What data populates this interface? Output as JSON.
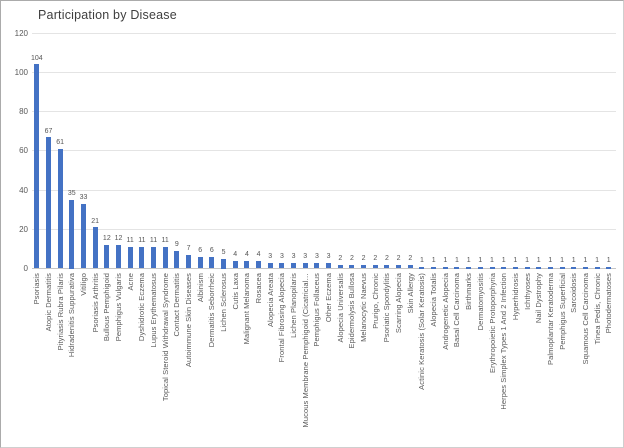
{
  "chart_data": {
    "type": "bar",
    "title": "Participation by Disease",
    "categories": [
      "Psoriasis",
      "Atopic Dermatitis",
      "Pityriasis Rubra Pilaris",
      "Hidradenitis Suppurativa",
      "Vitiligo",
      "Psoriasis Arthritis",
      "Bullous Pemphigoid",
      "Pemphigus Vulgaris",
      "Acne",
      "Dyshidrotic Eczema",
      "Lupus Erythematosus",
      "Topical Steroid Withdrawal Syndrome",
      "Contact Dermatitis",
      "Autoimmune Skin Diseases",
      "Albinism",
      "Dermatitis Seborrheic",
      "Lichen Sclerosus",
      "Cutis Laxa",
      "Malignant Melanoma",
      "Rosacea",
      "Alopecia Areata",
      "Frontal Fibrosing Alopecia",
      "Lichen Planopilaris",
      "Mucous Membrane Pemphigoid (Cicatricial…",
      "Pemphigus Follaceus",
      "Other Eczema",
      "Alopecia Universalis",
      "Epidermolysis Bullosa",
      "Melanocytic Naevus",
      "Prurigo, Chronic",
      "Psoriatic Spondylitis",
      "Scarring Alopecia",
      "Skin Allergy",
      "Actinic Keratosis (Solar Keratosis)",
      "Alopecia Totalis",
      "Androgenetic Alopecia",
      "Basal Cell Carcinoma",
      "Birthmarks",
      "Dermatomyositis",
      "Erythropoietic Protoporphyria",
      "Herpes Simplex Types 1 And 2 Infection",
      "Hyperhidrosis",
      "Ichthyoses",
      "Nail Dystrophy",
      "Palmoplantar Keratoderma",
      "Pemphigus Superficial",
      "Sarcoidosis",
      "Squamous Cell Carcinoma",
      "Tinea Pedis, Chronic",
      "Photodermatoses"
    ],
    "values": [
      104,
      67,
      61,
      35,
      33,
      21,
      12,
      12,
      11,
      11,
      11,
      11,
      9,
      7,
      6,
      6,
      5,
      4,
      4,
      4,
      3,
      3,
      3,
      3,
      3,
      3,
      2,
      2,
      2,
      2,
      2,
      2,
      2,
      1,
      1,
      1,
      1,
      1,
      1,
      1,
      1,
      1,
      1,
      1,
      1,
      1,
      1,
      1,
      1,
      1
    ],
    "xlabel": "",
    "ylabel": "",
    "ylim": [
      0,
      120
    ],
    "yticks": [
      0,
      20,
      40,
      60,
      80,
      100,
      120
    ],
    "grid": true,
    "legend_position": "none",
    "data_labels": "above bars",
    "bar_color": "#4472C4",
    "axis_text_color": "#595959",
    "title_color": "#3f3f3f",
    "gridline_color": "#e4e4e4"
  }
}
